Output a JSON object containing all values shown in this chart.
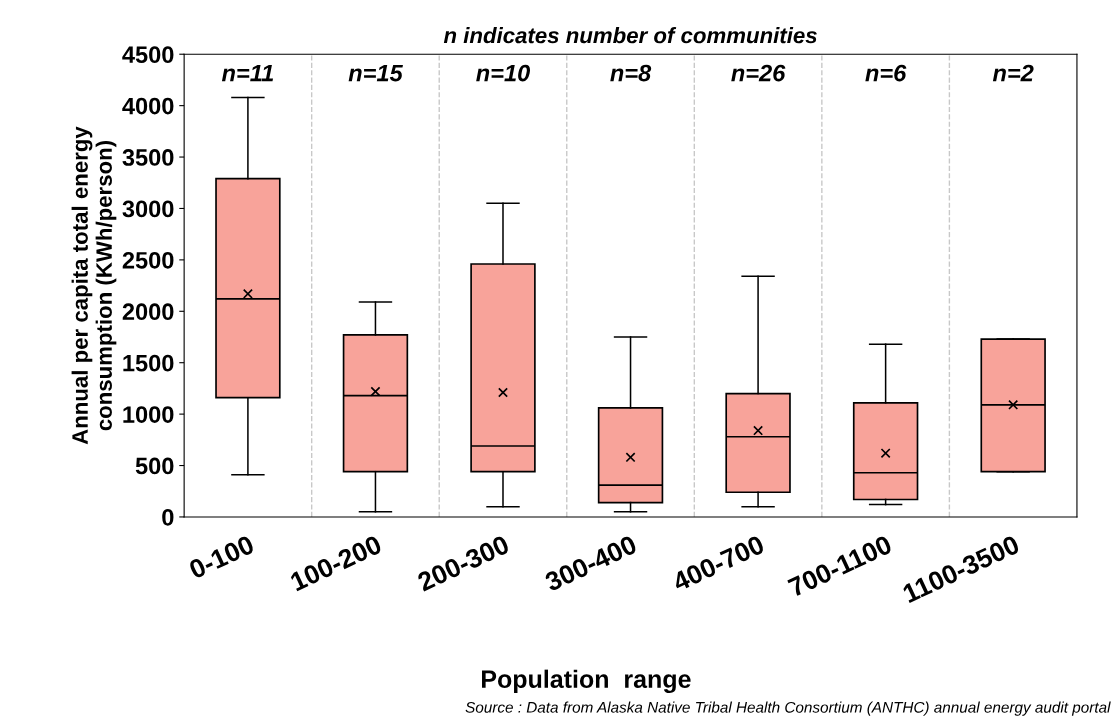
{
  "chart_data": {
    "type": "box",
    "title": "n indicates number of communities",
    "xlabel": "Population  range",
    "ylabel": "Annual per capita total energy\nconsumption (KWh/person)",
    "categories": [
      "0-100",
      "100-200",
      "200-300",
      "300-400",
      "400-700",
      "700-1100",
      "1100-3500"
    ],
    "color": "#f8a39a",
    "boxes": [
      {
        "low": 410,
        "q1": 1160,
        "median": 2120,
        "q3": 3290,
        "high": 4080,
        "mean": 2170
      },
      {
        "low": 50,
        "q1": 440,
        "median": 1180,
        "q3": 1770,
        "high": 2090,
        "mean": 1220
      },
      {
        "low": 100,
        "q1": 440,
        "median": 690,
        "q3": 2460,
        "high": 3050,
        "mean": 1210
      },
      {
        "low": 50,
        "q1": 140,
        "median": 310,
        "q3": 1060,
        "high": 1750,
        "mean": 580
      },
      {
        "low": 100,
        "q1": 240,
        "median": 780,
        "q3": 1200,
        "high": 2340,
        "mean": 840
      },
      {
        "low": 120,
        "q1": 170,
        "median": 430,
        "q3": 1110,
        "high": 1680,
        "mean": 620
      },
      {
        "low": 440,
        "q1": 440,
        "median": 1090,
        "q3": 1730,
        "high": 1730,
        "mean": 1090
      }
    ],
    "ylim": [
      0,
      4500
    ],
    "yticks": [
      0,
      500,
      1000,
      1500,
      2000,
      2500,
      3000,
      3500,
      4000,
      4500
    ],
    "annotations": [
      "n=11",
      "n=15",
      "n=10",
      "n=8",
      "n=26",
      "n=6",
      "n=2",
      "Source : Data from Alaska Native Tribal Health Consortium (ANTHC) annual energy audit portal"
    ],
    "grid": false,
    "legend": false
  }
}
